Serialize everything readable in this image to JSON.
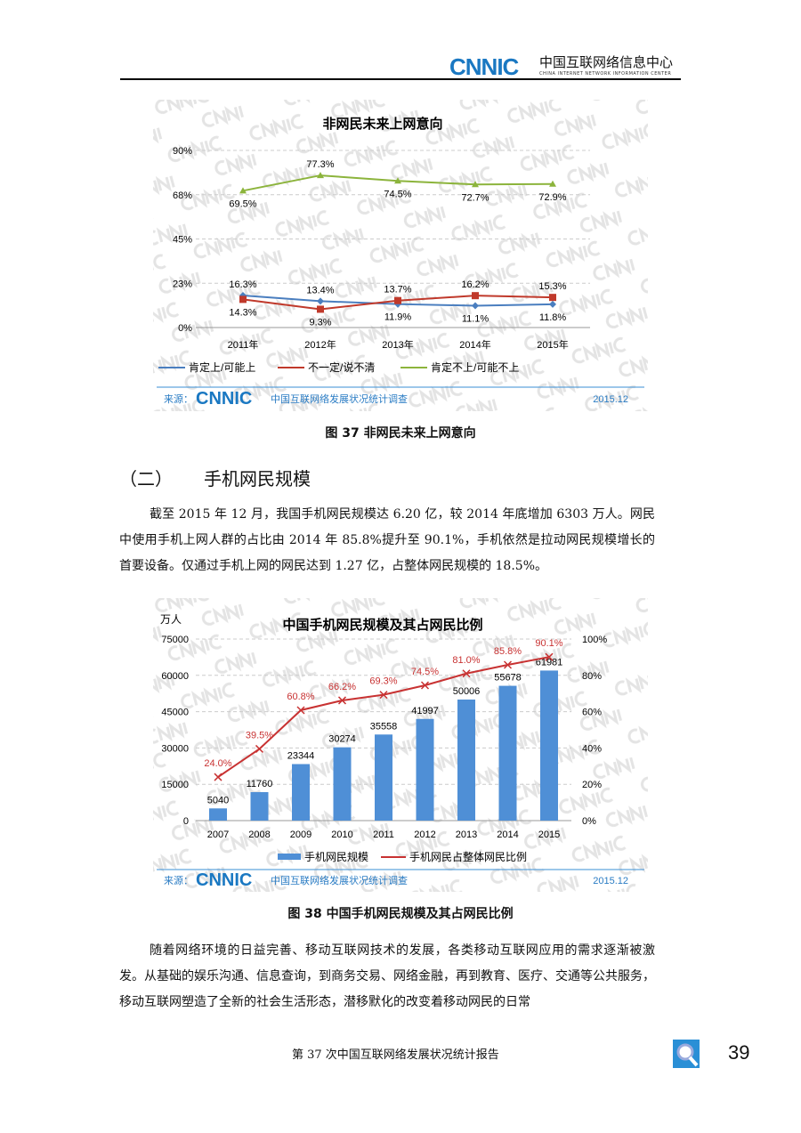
{
  "header": {
    "logo": "CNNIC",
    "org_cn": "中国互联网络信息中心",
    "org_en": "CHINA INTERNET NETWORK INFORMATION CENTER"
  },
  "watermark": "CNNIC",
  "figure37": {
    "caption": "图 37  非网民未来上网意向",
    "source_label": "来源：",
    "source_logo": "CNNIC",
    "source_text": "中国互联网络发展状况统计调查",
    "source_date": "2015.12"
  },
  "chart_data": [
    {
      "type": "line",
      "title": "非网民未来上网意向",
      "categories": [
        "2011年",
        "2012年",
        "2013年",
        "2014年",
        "2015年"
      ],
      "yticks": [
        "0%",
        "23%",
        "45%",
        "68%",
        "90%"
      ],
      "ylim": [
        0,
        90
      ],
      "grid": true,
      "legend": "bottom",
      "series": [
        {
          "name": "肯定上/可能上",
          "color": "#4a7ebf",
          "values": [
            16.3,
            13.4,
            11.9,
            11.1,
            11.8
          ],
          "labels": [
            "16.3%",
            "13.4%",
            "11.9%",
            "11.1%",
            "11.8%"
          ]
        },
        {
          "name": "不一定/说不清",
          "color": "#c0392b",
          "values": [
            14.3,
            9.3,
            13.7,
            16.2,
            15.3
          ],
          "labels": [
            "14.3%",
            "9.3%",
            "13.7%",
            "16.2%",
            "15.3%"
          ]
        },
        {
          "name": "肯定不上/可能不上",
          "color": "#8cb43c",
          "values": [
            69.5,
            77.3,
            74.5,
            72.7,
            72.9
          ],
          "labels": [
            "69.5%",
            "77.3%",
            "74.5%",
            "72.7%",
            "72.9%"
          ]
        }
      ]
    },
    {
      "type": "bar+line",
      "title": "中国手机网民规模及其占网民比例",
      "ylabel": "万人",
      "categories": [
        "2007",
        "2008",
        "2009",
        "2010",
        "2011",
        "2012",
        "2013",
        "2014",
        "2015"
      ],
      "yticks": [
        "0",
        "15000",
        "30000",
        "45000",
        "60000",
        "75000"
      ],
      "ylim": [
        0,
        75000
      ],
      "y2ticks": [
        "0%",
        "20%",
        "40%",
        "60%",
        "80%",
        "100%"
      ],
      "y2lim": [
        0,
        100
      ],
      "grid": true,
      "legend": "bottom",
      "series": [
        {
          "name": "手机网民规模",
          "type": "bar",
          "color": "#4f8fd6",
          "values": [
            5040,
            11760,
            23344,
            30274,
            35558,
            41997,
            50006,
            55678,
            61981
          ],
          "labels": [
            "5040",
            "11760",
            "23344",
            "30274",
            "35558",
            "41997",
            "50006",
            "55678",
            "61981"
          ]
        },
        {
          "name": "手机网民占整体网民比例",
          "type": "line",
          "axis": "right",
          "color": "#c83232",
          "values": [
            24.0,
            39.5,
            60.8,
            66.2,
            69.3,
            74.5,
            81.0,
            85.8,
            90.1
          ],
          "labels": [
            "24.0%",
            "39.5%",
            "60.8%",
            "66.2%",
            "69.3%",
            "74.5%",
            "81.0%",
            "85.8%",
            "90.1%"
          ]
        }
      ]
    }
  ],
  "section": {
    "num": "（二）",
    "title": "手机网民规模"
  },
  "para1": "截至 2015 年 12 月，我国手机网民规模达 6.20 亿，较 2014 年底增加 6303 万人。网民中使用手机上网人群的占比由 2014 年 85.8%提升至 90.1%，手机依然是拉动网民规模增长的首要设备。仅通过手机上网的网民达到 1.27 亿，占整体网民规模的 18.5%。",
  "figure38": {
    "caption": "图 38  中国手机网民规模及其占网民比例",
    "source_label": "来源：",
    "source_logo": "CNNIC",
    "source_text": "中国互联网络发展状况统计调查",
    "source_date": "2015.12"
  },
  "para2": "随着网络环境的日益完善、移动互联网技术的发展，各类移动互联网应用的需求逐渐被激发。从基础的娱乐沟通、信息查询，到商务交易、网络金融，再到教育、医疗、交通等公共服务，移动互联网塑造了全新的社会生活形态，潜移默化的改变着移动网民的日常",
  "footer": {
    "report": "第 37 次中国互联网络发展状况统计报告",
    "page": "39",
    "icon": "search-report-icon"
  }
}
